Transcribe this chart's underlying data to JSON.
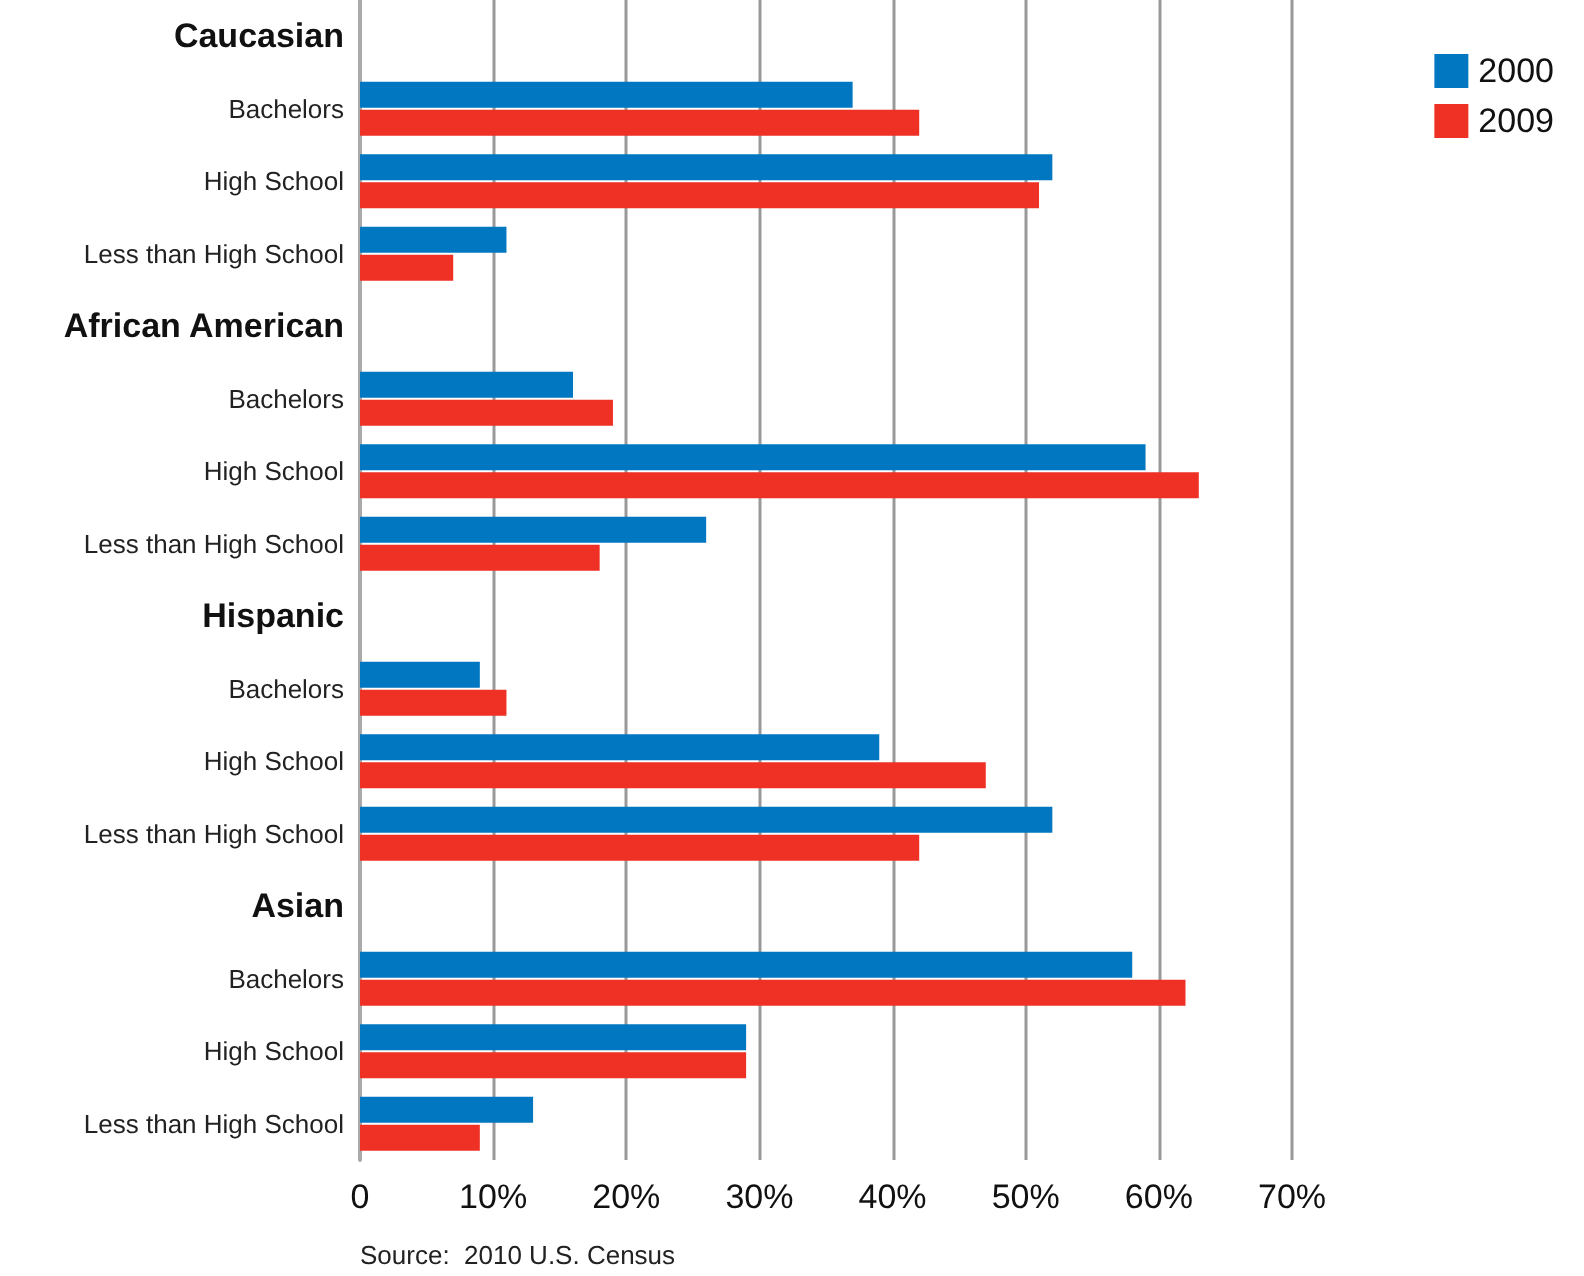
{
  "chart_data": {
    "type": "bar",
    "orientation": "horizontal",
    "categories": [
      "Caucasian",
      "Bachelors",
      "High School",
      "Less than High School",
      "African American",
      "Bachelors",
      "High School",
      "Less than High School",
      "Hispanic",
      "Bachelors",
      "High School",
      "Less than High School",
      "Asian",
      "Bachelors",
      "High School",
      "Less than High School"
    ],
    "series": [
      {
        "name": "2000",
        "color": "#0077c0",
        "values": [
          null,
          37,
          52,
          11,
          null,
          16,
          59,
          26,
          null,
          9,
          39,
          52,
          null,
          58,
          29,
          13
        ]
      },
      {
        "name": "2009",
        "color": "#ee3124",
        "values": [
          null,
          42,
          51,
          7,
          null,
          19,
          63,
          18,
          null,
          11,
          47,
          42,
          null,
          62,
          29,
          9
        ]
      }
    ],
    "xlim": [
      0,
      70
    ],
    "xticks": [
      0,
      {
        "value": 10,
        "label": "10%"
      },
      {
        "value": 20,
        "label": "20%"
      },
      {
        "value": 30,
        "label": "30%"
      },
      {
        "value": 40,
        "label": "40%"
      },
      {
        "value": 50,
        "label": "50%"
      },
      {
        "value": 60,
        "label": "60%"
      },
      {
        "value": 70,
        "label": "70%"
      }
    ],
    "grid": "x",
    "legend": "top right",
    "annotations": [
      "Source:  2010 U.S. Census"
    ]
  }
}
